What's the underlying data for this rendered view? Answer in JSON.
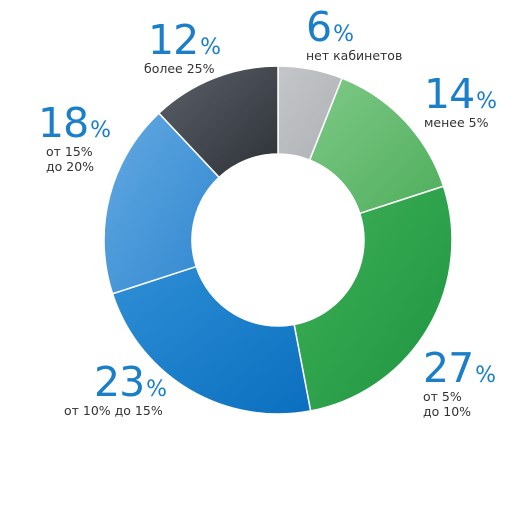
{
  "chart_data": {
    "type": "pie",
    "donut": true,
    "start": "top",
    "direction": "clockwise",
    "slices": [
      {
        "value": 6,
        "value_label": "6",
        "unit": "%",
        "label": "нет кабинетов",
        "color_start": "#c4c6c9",
        "color_end": "#aeb1b5"
      },
      {
        "value": 14,
        "value_label": "14",
        "unit": "%",
        "label": "менее 5%",
        "color_start": "#7ec987",
        "color_end": "#4fae5c"
      },
      {
        "value": 27,
        "value_label": "27",
        "unit": "%",
        "label": "от 5%\nдо 10%",
        "color_start": "#3fb058",
        "color_end": "#1e9440"
      },
      {
        "value": 23,
        "value_label": "23",
        "unit": "%",
        "label": "от 10% до 15%",
        "color_start": "#2f8fd6",
        "color_end": "#0a6fbf"
      },
      {
        "value": 18,
        "value_label": "18",
        "unit": "%",
        "label": "от 15%\nдо 20%",
        "color_start": "#64a9e2",
        "color_end": "#2f87cf"
      },
      {
        "value": 12,
        "value_label": "12",
        "unit": "%",
        "label": "более 25%",
        "color_start": "#5c616a",
        "color_end": "#2d3137"
      }
    ]
  }
}
